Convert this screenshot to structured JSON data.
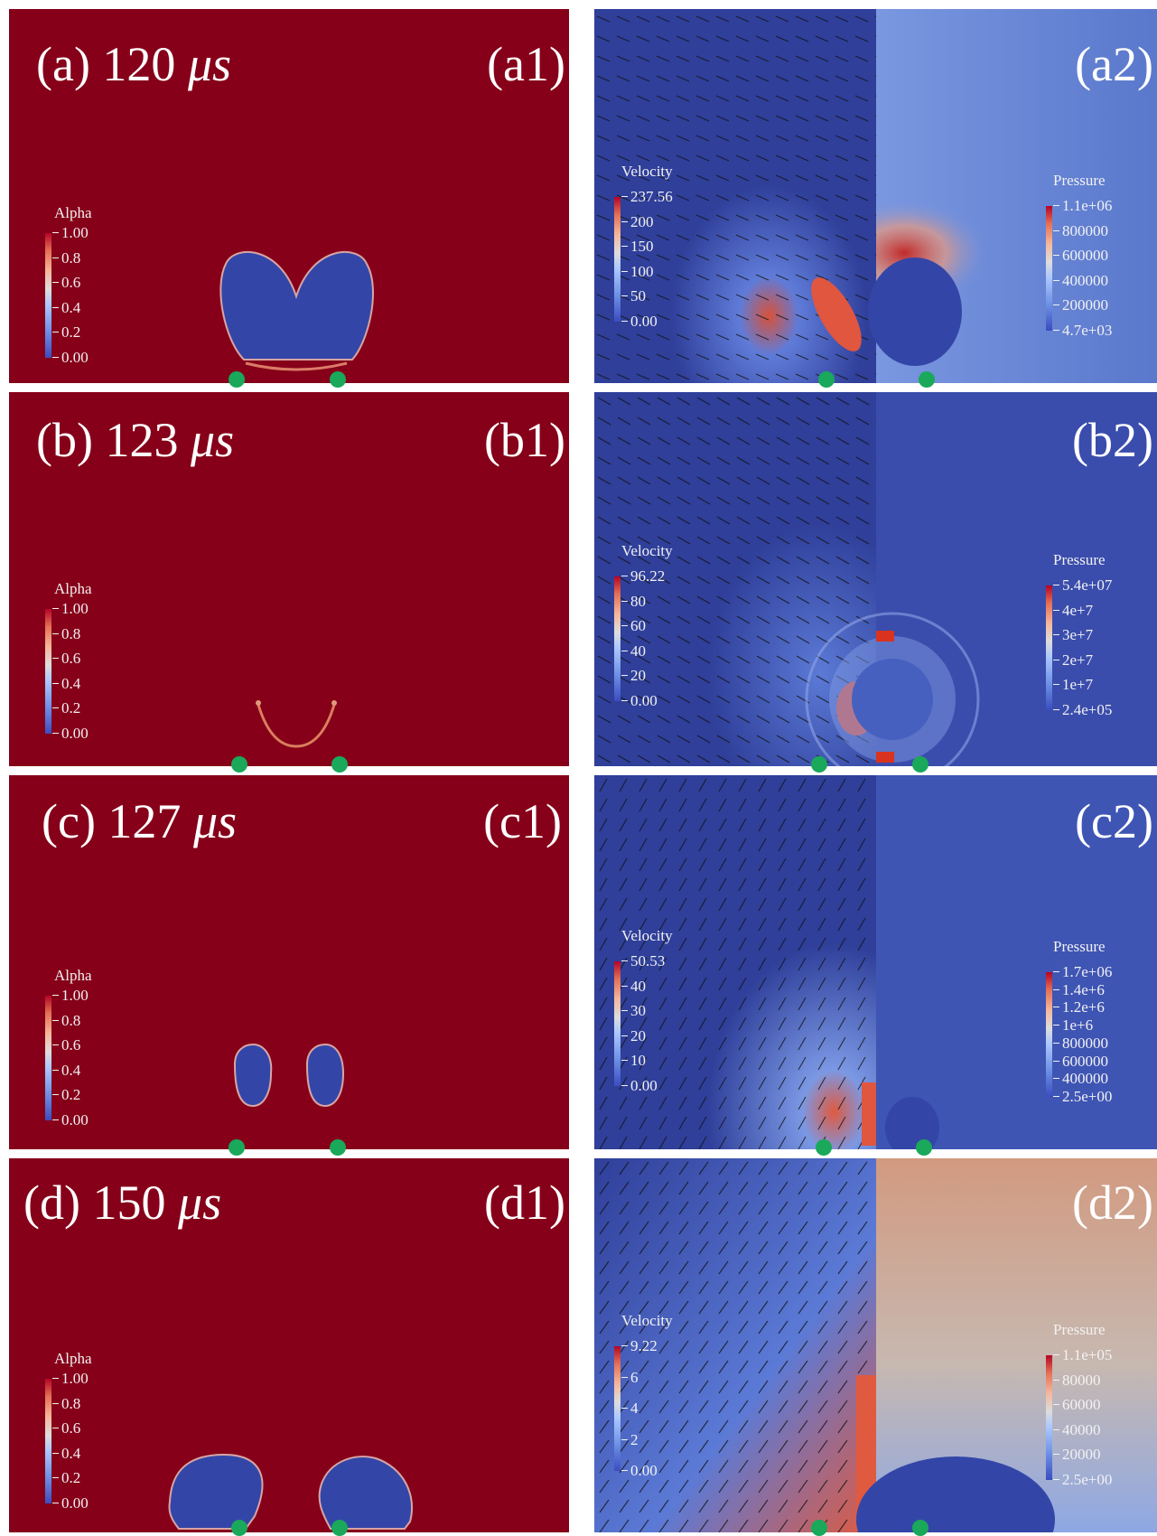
{
  "rows": [
    {
      "time_label": "(a) 120 ",
      "time_unit": "μs",
      "left_label": "(a1)",
      "right_label": "(a2)",
      "alpha_bar": {
        "title": "Alpha",
        "ticks": [
          "1.00",
          "0.8",
          "0.6",
          "0.4",
          "0.2",
          "0.00"
        ]
      },
      "velocity_bar": {
        "title": "Velocity",
        "ticks": [
          "237.56",
          "200",
          "150",
          "100",
          "50",
          "0.00"
        ]
      },
      "pressure_bar": {
        "title": "Pressure",
        "ticks": [
          "1.1e+06",
          "800000",
          "600000",
          "400000",
          "200000",
          "4.7e+03"
        ]
      }
    },
    {
      "time_label": "(b) 123 ",
      "time_unit": "μs",
      "left_label": "(b1)",
      "right_label": "(b2)",
      "alpha_bar": {
        "title": "Alpha",
        "ticks": [
          "1.00",
          "0.8",
          "0.6",
          "0.4",
          "0.2",
          "0.00"
        ]
      },
      "velocity_bar": {
        "title": "Velocity",
        "ticks": [
          "96.22",
          "80",
          "60",
          "40",
          "20",
          "0.00"
        ]
      },
      "pressure_bar": {
        "title": "Pressure",
        "ticks": [
          "5.4e+07",
          "4e+7",
          "3e+7",
          "2e+7",
          "1e+7",
          "2.4e+05"
        ]
      }
    },
    {
      "time_label": "(c) 127 ",
      "time_unit": "μs",
      "left_label": "(c1)",
      "right_label": "(c2)",
      "alpha_bar": {
        "title": "Alpha",
        "ticks": [
          "1.00",
          "0.8",
          "0.6",
          "0.4",
          "0.2",
          "0.00"
        ]
      },
      "velocity_bar": {
        "title": "Velocity",
        "ticks": [
          "50.53",
          "40",
          "30",
          "20",
          "10",
          "0.00"
        ]
      },
      "pressure_bar": {
        "title": "Pressure",
        "ticks": [
          "1.7e+06",
          "1.4e+6",
          "1.2e+6",
          "1e+6",
          "800000",
          "600000",
          "400000",
          "2.5e+00"
        ]
      }
    },
    {
      "time_label": "(d) 150 ",
      "time_unit": "μs",
      "left_label": "(d1)",
      "right_label": "(d2)",
      "alpha_bar": {
        "title": "Alpha",
        "ticks": [
          "1.00",
          "0.8",
          "0.6",
          "0.4",
          "0.2",
          "0.00"
        ]
      },
      "velocity_bar": {
        "title": "Velocity",
        "ticks": [
          "9.22",
          "6",
          "4",
          "2",
          "0.00"
        ]
      },
      "pressure_bar": {
        "title": "Pressure",
        "ticks": [
          "1.1e+05",
          "80000",
          "60000",
          "40000",
          "20000",
          "2.5e+00"
        ]
      }
    }
  ],
  "colors": {
    "liquid": "#860019",
    "bubble": "#3346a8",
    "marker": "#1aa85a",
    "velocity_bg": "#2f3f9a",
    "pressure_bg": "#5a78cc"
  },
  "icons": {
    "marker": "green-dot-marker"
  }
}
